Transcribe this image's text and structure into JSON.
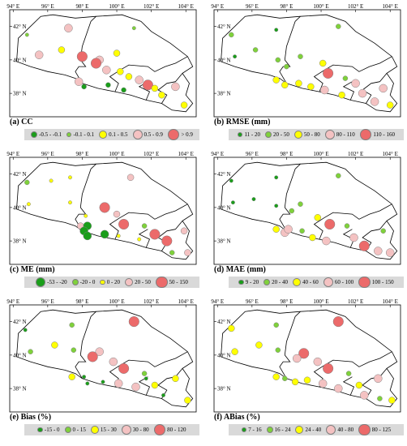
{
  "axes": {
    "x_ticks": [
      "94° E",
      "96° E",
      "98° E",
      "100° E",
      "102° E",
      "104° E"
    ],
    "y_ticks": [
      "42° N",
      "40° N",
      "38° N"
    ]
  },
  "panels": [
    {
      "title": "(a)  CC",
      "legend": [
        {
          "label": "-0.5 - -0.1",
          "color": "#1a9e1a",
          "size": 1
        },
        {
          "label": "-0.1 - 0.1",
          "color": "#7fd13b",
          "size": 0
        },
        {
          "label": "0.1 - 0.5",
          "color": "#ffff00",
          "size": 2
        },
        {
          "label": "0.5 - 0.9",
          "color": "#f4c2c2",
          "size": 3
        },
        {
          "label": "> 0.9",
          "color": "#ec6a6a",
          "size": 4
        }
      ],
      "stations": [
        {
          "lon": 94.8,
          "lat": 41.5,
          "cls": 1
        },
        {
          "lon": 95.5,
          "lat": 40.3,
          "cls": 3
        },
        {
          "lon": 96.8,
          "lat": 40.6,
          "cls": 2
        },
        {
          "lon": 97.2,
          "lat": 41.9,
          "cls": 3
        },
        {
          "lon": 98.0,
          "lat": 40.2,
          "cls": 4
        },
        {
          "lon": 99.0,
          "lat": 40.0,
          "cls": 3
        },
        {
          "lon": 100.0,
          "lat": 40.4,
          "cls": 2
        },
        {
          "lon": 101.0,
          "lat": 41.9,
          "cls": 1
        },
        {
          "lon": 98.8,
          "lat": 39.8,
          "cls": 4
        },
        {
          "lon": 99.4,
          "lat": 39.4,
          "cls": 3
        },
        {
          "lon": 100.2,
          "lat": 39.3,
          "cls": 2
        },
        {
          "lon": 100.7,
          "lat": 39.0,
          "cls": 2
        },
        {
          "lon": 101.3,
          "lat": 38.8,
          "cls": 3
        },
        {
          "lon": 97.8,
          "lat": 38.7,
          "cls": 3
        },
        {
          "lon": 98.1,
          "lat": 38.4,
          "cls": 0
        },
        {
          "lon": 99.5,
          "lat": 38.5,
          "cls": 0
        },
        {
          "lon": 100.4,
          "lat": 38.2,
          "cls": 0
        },
        {
          "lon": 101.8,
          "lat": 38.5,
          "cls": 4
        },
        {
          "lon": 102.2,
          "lat": 38.3,
          "cls": 2
        },
        {
          "lon": 102.6,
          "lat": 37.9,
          "cls": 2
        },
        {
          "lon": 103.4,
          "lat": 38.4,
          "cls": 3
        },
        {
          "lon": 103.9,
          "lat": 37.3,
          "cls": 2
        }
      ]
    },
    {
      "title": "(b)  RMSE (mm)",
      "legend": [
        {
          "label": "11 - 20",
          "color": "#1a9e1a",
          "size": 0
        },
        {
          "label": "20 - 50",
          "color": "#7fd13b",
          "size": 1
        },
        {
          "label": "50 - 80",
          "color": "#ffff00",
          "size": 2
        },
        {
          "label": "80 - 110",
          "color": "#f4c2c2",
          "size": 3
        },
        {
          "label": "110 - 160",
          "color": "#ec6a6a",
          "size": 4
        }
      ],
      "stations": [
        {
          "lon": 94.8,
          "lat": 41.5,
          "cls": 1
        },
        {
          "lon": 95.0,
          "lat": 40.2,
          "cls": 0
        },
        {
          "lon": 96.2,
          "lat": 40.6,
          "cls": 1
        },
        {
          "lon": 97.4,
          "lat": 41.8,
          "cls": 0
        },
        {
          "lon": 97.5,
          "lat": 40.0,
          "cls": 1
        },
        {
          "lon": 98.0,
          "lat": 39.6,
          "cls": 1
        },
        {
          "lon": 98.8,
          "lat": 40.2,
          "cls": 1
        },
        {
          "lon": 101.0,
          "lat": 42.0,
          "cls": 1
        },
        {
          "lon": 100.1,
          "lat": 39.8,
          "cls": 2
        },
        {
          "lon": 100.4,
          "lat": 39.2,
          "cls": 4
        },
        {
          "lon": 101.4,
          "lat": 38.9,
          "cls": 1
        },
        {
          "lon": 97.4,
          "lat": 38.8,
          "cls": 2
        },
        {
          "lon": 97.9,
          "lat": 38.5,
          "cls": 2
        },
        {
          "lon": 98.7,
          "lat": 38.6,
          "cls": 2
        },
        {
          "lon": 99.4,
          "lat": 38.4,
          "cls": 2
        },
        {
          "lon": 100.2,
          "lat": 38.2,
          "cls": 3
        },
        {
          "lon": 101.2,
          "lat": 37.9,
          "cls": 2
        },
        {
          "lon": 102.0,
          "lat": 38.6,
          "cls": 3
        },
        {
          "lon": 102.4,
          "lat": 38.0,
          "cls": 3
        },
        {
          "lon": 103.1,
          "lat": 37.5,
          "cls": 3
        },
        {
          "lon": 103.6,
          "lat": 38.3,
          "cls": 3
        },
        {
          "lon": 104.0,
          "lat": 37.3,
          "cls": 2
        }
      ]
    },
    {
      "title": "(c)  ME (mm)",
      "legend": [
        {
          "label": "-53 - -20",
          "color": "#1a9e1a",
          "size": 3
        },
        {
          "label": "-20 - 0",
          "color": "#7fd13b",
          "size": 1
        },
        {
          "label": "0 - 20",
          "color": "#ffff00",
          "size": 0
        },
        {
          "label": "20 - 50",
          "color": "#f4c2c2",
          "size": 2
        },
        {
          "label": "50 - 150",
          "color": "#ec6a6a",
          "size": 4
        }
      ],
      "stations": [
        {
          "lon": 94.8,
          "lat": 41.5,
          "cls": 1
        },
        {
          "lon": 94.9,
          "lat": 40.2,
          "cls": 2
        },
        {
          "lon": 96.2,
          "lat": 41.6,
          "cls": 2
        },
        {
          "lon": 97.3,
          "lat": 41.8,
          "cls": 2
        },
        {
          "lon": 97.3,
          "lat": 40.3,
          "cls": 2
        },
        {
          "lon": 98.2,
          "lat": 39.5,
          "cls": 2
        },
        {
          "lon": 99.3,
          "lat": 40.0,
          "cls": 4
        },
        {
          "lon": 100.8,
          "lat": 41.8,
          "cls": 3
        },
        {
          "lon": 100.0,
          "lat": 39.6,
          "cls": 3
        },
        {
          "lon": 100.4,
          "lat": 39.0,
          "cls": 4
        },
        {
          "lon": 101.6,
          "lat": 38.9,
          "cls": 1
        },
        {
          "lon": 97.9,
          "lat": 38.9,
          "cls": 3
        },
        {
          "lon": 98.3,
          "lat": 38.9,
          "cls": 0
        },
        {
          "lon": 98.1,
          "lat": 38.6,
          "cls": 0
        },
        {
          "lon": 98.3,
          "lat": 38.3,
          "cls": 0
        },
        {
          "lon": 99.3,
          "lat": 38.4,
          "cls": 0
        },
        {
          "lon": 100.1,
          "lat": 38.3,
          "cls": 2
        },
        {
          "lon": 101.3,
          "lat": 38.1,
          "cls": 2
        },
        {
          "lon": 102.2,
          "lat": 38.4,
          "cls": 4
        },
        {
          "lon": 102.9,
          "lat": 38.0,
          "cls": 4
        },
        {
          "lon": 103.2,
          "lat": 37.3,
          "cls": 1
        },
        {
          "lon": 103.9,
          "lat": 38.6,
          "cls": 3
        },
        {
          "lon": 104.1,
          "lat": 37.3,
          "cls": 3
        }
      ]
    },
    {
      "title": "(d)  MAE (mm)",
      "legend": [
        {
          "label": "9 - 20",
          "color": "#1a9e1a",
          "size": 0
        },
        {
          "label": "20 - 40",
          "color": "#7fd13b",
          "size": 1
        },
        {
          "label": "40 - 60",
          "color": "#ffff00",
          "size": 2
        },
        {
          "label": "60 - 100",
          "color": "#f4c2c2",
          "size": 3
        },
        {
          "label": "100 - 150",
          "color": "#ec6a6a",
          "size": 4
        }
      ],
      "stations": [
        {
          "lon": 94.8,
          "lat": 41.6,
          "cls": 0
        },
        {
          "lon": 94.9,
          "lat": 40.3,
          "cls": 0
        },
        {
          "lon": 96.1,
          "lat": 40.5,
          "cls": 0
        },
        {
          "lon": 97.4,
          "lat": 41.8,
          "cls": 0
        },
        {
          "lon": 97.4,
          "lat": 40.1,
          "cls": 0
        },
        {
          "lon": 98.3,
          "lat": 39.8,
          "cls": 1
        },
        {
          "lon": 98.8,
          "lat": 40.2,
          "cls": 1
        },
        {
          "lon": 101.0,
          "lat": 41.9,
          "cls": 1
        },
        {
          "lon": 99.8,
          "lat": 39.4,
          "cls": 2
        },
        {
          "lon": 100.5,
          "lat": 39.0,
          "cls": 4
        },
        {
          "lon": 101.5,
          "lat": 38.9,
          "cls": 1
        },
        {
          "lon": 97.4,
          "lat": 38.7,
          "cls": 2
        },
        {
          "lon": 97.9,
          "lat": 38.5,
          "cls": 3
        },
        {
          "lon": 98.1,
          "lat": 38.7,
          "cls": 3
        },
        {
          "lon": 98.9,
          "lat": 38.6,
          "cls": 1
        },
        {
          "lon": 99.5,
          "lat": 38.2,
          "cls": 2
        },
        {
          "lon": 100.3,
          "lat": 38.0,
          "cls": 3
        },
        {
          "lon": 101.9,
          "lat": 38.2,
          "cls": 3
        },
        {
          "lon": 102.5,
          "lat": 37.7,
          "cls": 4
        },
        {
          "lon": 103.3,
          "lat": 37.4,
          "cls": 3
        },
        {
          "lon": 103.6,
          "lat": 38.6,
          "cls": 1
        },
        {
          "lon": 104.0,
          "lat": 37.3,
          "cls": 3
        }
      ]
    },
    {
      "title": "(e)  Bias (%)",
      "legend": [
        {
          "label": "-15 - 0",
          "color": "#1a9e1a",
          "size": 0
        },
        {
          "label": "0 - 15",
          "color": "#7fd13b",
          "size": 1
        },
        {
          "label": "15 - 30",
          "color": "#ffff00",
          "size": 2
        },
        {
          "label": "30 - 80",
          "color": "#f4c2c2",
          "size": 3
        },
        {
          "label": "80 - 120",
          "color": "#ec6a6a",
          "size": 4
        }
      ],
      "stations": [
        {
          "lon": 94.7,
          "lat": 41.5,
          "cls": 0
        },
        {
          "lon": 95.0,
          "lat": 40.2,
          "cls": 1
        },
        {
          "lon": 96.4,
          "lat": 40.6,
          "cls": 2
        },
        {
          "lon": 97.4,
          "lat": 41.8,
          "cls": 1
        },
        {
          "lon": 97.5,
          "lat": 40.3,
          "cls": 1
        },
        {
          "lon": 99.0,
          "lat": 40.2,
          "cls": 3
        },
        {
          "lon": 98.6,
          "lat": 39.9,
          "cls": 4
        },
        {
          "lon": 101.0,
          "lat": 42.0,
          "cls": 4
        },
        {
          "lon": 99.8,
          "lat": 39.6,
          "cls": 3
        },
        {
          "lon": 100.4,
          "lat": 39.2,
          "cls": 4
        },
        {
          "lon": 101.6,
          "lat": 38.9,
          "cls": 1
        },
        {
          "lon": 97.4,
          "lat": 38.7,
          "cls": 2
        },
        {
          "lon": 98.1,
          "lat": 38.7,
          "cls": 0
        },
        {
          "lon": 98.3,
          "lat": 38.3,
          "cls": 0
        },
        {
          "lon": 99.2,
          "lat": 38.4,
          "cls": 0
        },
        {
          "lon": 100.1,
          "lat": 38.3,
          "cls": 3
        },
        {
          "lon": 101.1,
          "lat": 38.1,
          "cls": 3
        },
        {
          "lon": 101.7,
          "lat": 38.6,
          "cls": 0
        },
        {
          "lon": 102.2,
          "lat": 38.2,
          "cls": 2
        },
        {
          "lon": 102.7,
          "lat": 37.6,
          "cls": 0
        },
        {
          "lon": 103.4,
          "lat": 38.6,
          "cls": 2
        },
        {
          "lon": 104.1,
          "lat": 37.3,
          "cls": 2
        }
      ]
    },
    {
      "title": "(f)  ABias (%)",
      "legend": [
        {
          "label": "7 - 16",
          "color": "#1a9e1a",
          "size": 0
        },
        {
          "label": "16 - 24",
          "color": "#7fd13b",
          "size": 1
        },
        {
          "label": "24 - 40",
          "color": "#ffff00",
          "size": 2
        },
        {
          "label": "40 - 80",
          "color": "#f4c2c2",
          "size": 3
        },
        {
          "label": "80 - 125",
          "color": "#ec6a6a",
          "size": 4
        }
      ],
      "stations": [
        {
          "lon": 94.8,
          "lat": 41.6,
          "cls": 2
        },
        {
          "lon": 95.0,
          "lat": 40.2,
          "cls": 2
        },
        {
          "lon": 96.4,
          "lat": 40.6,
          "cls": 2
        },
        {
          "lon": 97.4,
          "lat": 41.8,
          "cls": 1
        },
        {
          "lon": 97.5,
          "lat": 40.3,
          "cls": 1
        },
        {
          "lon": 99.0,
          "lat": 40.1,
          "cls": 4
        },
        {
          "lon": 98.6,
          "lat": 39.8,
          "cls": 3
        },
        {
          "lon": 101.0,
          "lat": 42.0,
          "cls": 4
        },
        {
          "lon": 99.8,
          "lat": 39.6,
          "cls": 3
        },
        {
          "lon": 100.4,
          "lat": 39.2,
          "cls": 4
        },
        {
          "lon": 101.6,
          "lat": 38.9,
          "cls": 1
        },
        {
          "lon": 97.4,
          "lat": 38.7,
          "cls": 2
        },
        {
          "lon": 97.9,
          "lat": 38.6,
          "cls": 1
        },
        {
          "lon": 98.5,
          "lat": 38.4,
          "cls": 2
        },
        {
          "lon": 99.2,
          "lat": 38.5,
          "cls": 2
        },
        {
          "lon": 100.1,
          "lat": 38.3,
          "cls": 3
        },
        {
          "lon": 101.0,
          "lat": 38.0,
          "cls": 3
        },
        {
          "lon": 102.2,
          "lat": 38.2,
          "cls": 2
        },
        {
          "lon": 102.5,
          "lat": 37.6,
          "cls": 3
        },
        {
          "lon": 103.3,
          "lat": 38.6,
          "cls": 3
        },
        {
          "lon": 103.4,
          "lat": 37.4,
          "cls": 1
        },
        {
          "lon": 104.1,
          "lat": 37.3,
          "cls": 2
        }
      ]
    }
  ]
}
